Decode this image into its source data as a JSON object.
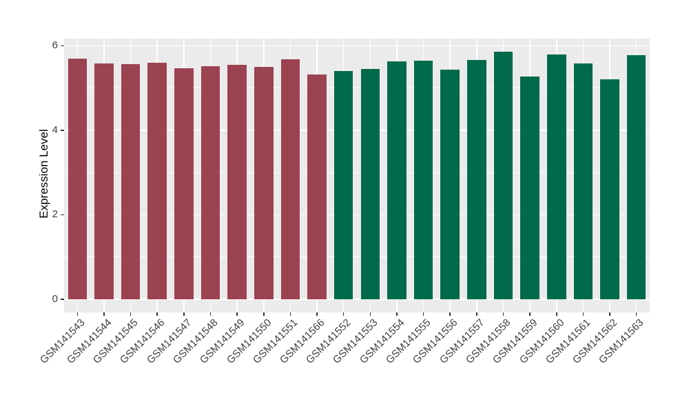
{
  "chart_data": {
    "type": "bar",
    "title": "",
    "xlabel": "",
    "ylabel": "Expression Level",
    "categories": [
      "GSM141543",
      "GSM141544",
      "GSM141545",
      "GSM141546",
      "GSM141547",
      "GSM141548",
      "GSM141549",
      "GSM141550",
      "GSM141551",
      "GSM141566",
      "GSM141552",
      "GSM141553",
      "GSM141554",
      "GSM141555",
      "GSM141556",
      "GSM141557",
      "GSM141558",
      "GSM141559",
      "GSM141560",
      "GSM141561",
      "GSM141562",
      "GSM141563"
    ],
    "values": [
      5.69,
      5.58,
      5.57,
      5.6,
      5.47,
      5.51,
      5.55,
      5.5,
      5.68,
      5.32,
      5.41,
      5.45,
      5.63,
      5.64,
      5.44,
      5.66,
      5.86,
      5.27,
      5.8,
      5.58,
      5.21,
      5.77
    ],
    "bar_colors": [
      "#9C4352",
      "#9C4352",
      "#9C4352",
      "#9C4352",
      "#9C4352",
      "#9C4352",
      "#9C4352",
      "#9C4352",
      "#9C4352",
      "#9C4352",
      "#016A4C",
      "#016A4C",
      "#016A4C",
      "#016A4C",
      "#016A4C",
      "#016A4C",
      "#016A4C",
      "#016A4C",
      "#016A4C",
      "#016A4C",
      "#016A4C",
      "#016A4C"
    ],
    "ytick_labels": [
      "0",
      "2",
      "4",
      "6"
    ],
    "yticks": [
      0,
      2,
      4,
      6
    ],
    "yticks_minor": [
      1,
      3,
      5
    ],
    "ylim": [
      0,
      6.17
    ],
    "grid": "major-horizontal, minor-horizontal, major-vertical-at-category-centers",
    "legend_position": "none",
    "panel_background": "#EBEBEB",
    "grid_color": "#FFFFFF",
    "axis_text_color": "#404040",
    "tick_color": "#333333",
    "outer_background": "#FFFFFF"
  }
}
